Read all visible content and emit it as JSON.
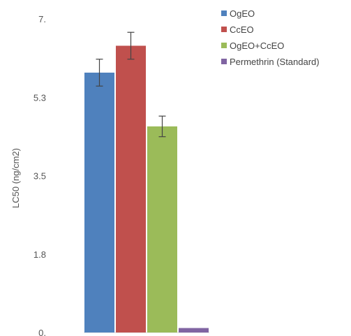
{
  "chart_data": {
    "type": "bar",
    "xlabel": "",
    "ylabel": "LC50 (ng/cm2)",
    "ylim": [
      0,
      7
    ],
    "yticks": [
      "0.",
      "1.8",
      "3.5",
      "5.3",
      "7."
    ],
    "grid": false,
    "legend_position": "top-right",
    "categories": [
      ""
    ],
    "series": [
      {
        "name": "OgEO",
        "color": "#4f81bd",
        "values": [
          5.8
        ],
        "error": [
          0.3
        ]
      },
      {
        "name": "CcEO",
        "color": "#c0504d",
        "values": [
          6.4
        ],
        "error": [
          0.3
        ]
      },
      {
        "name": "OgEO+CcEO",
        "color": "#9bbb59",
        "values": [
          4.6
        ],
        "error": [
          0.23
        ]
      },
      {
        "name": "Permethrin (Standard)",
        "color": "#8064a2",
        "values": [
          0.1
        ],
        "error": [
          0
        ]
      }
    ]
  }
}
